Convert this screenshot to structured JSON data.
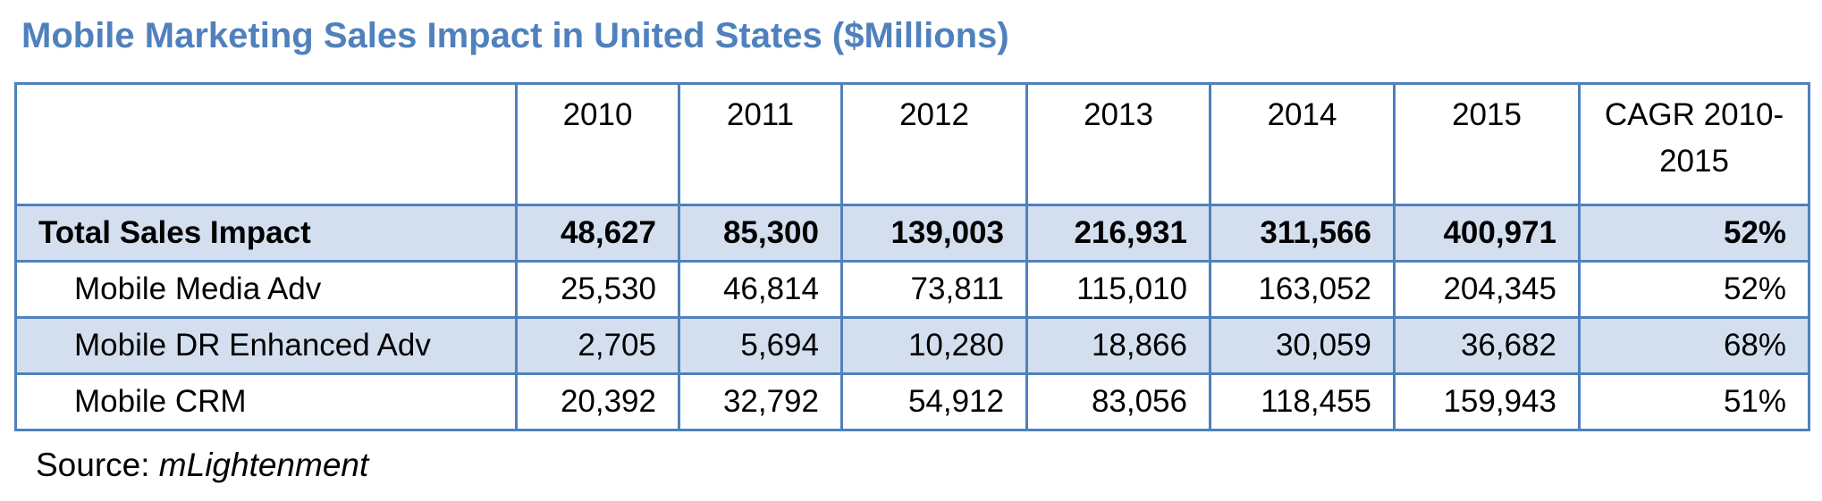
{
  "title": "Mobile Marketing Sales Impact in United States ($Millions)",
  "colors": {
    "title": "#4F81BD",
    "border": "#4F81BD",
    "shaded_row": "#D3DFEE"
  },
  "table": {
    "headers": [
      "",
      "2010",
      "2011",
      "2012",
      "2013",
      "2014",
      "2015",
      "CAGR  2010-2015"
    ],
    "rows": [
      {
        "label": "Total Sales Impact",
        "values": [
          "48,627",
          "85,300",
          "139,003",
          "216,931",
          "311,566",
          "400,971",
          "52%"
        ]
      },
      {
        "label": "Mobile Media Adv",
        "values": [
          "25,530",
          "46,814",
          "73,811",
          "115,010",
          "163,052",
          "204,345",
          "52%"
        ]
      },
      {
        "label": "Mobile DR Enhanced Adv",
        "values": [
          "2,705",
          "5,694",
          "10,280",
          "18,866",
          "30,059",
          "36,682",
          "68%"
        ]
      },
      {
        "label": "Mobile CRM",
        "values": [
          "20,392",
          "32,792",
          "54,912",
          "83,056",
          "118,455",
          "159,943",
          "51%"
        ]
      }
    ]
  },
  "source": {
    "prefix": "Source: ",
    "name": "mLightenment"
  }
}
